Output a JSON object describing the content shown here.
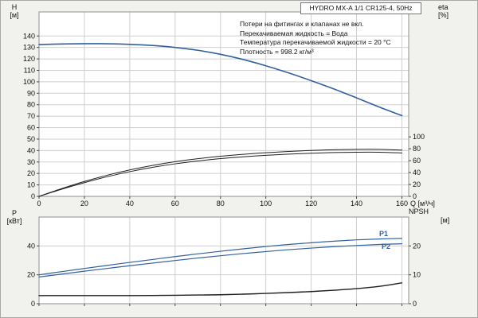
{
  "title": "HYDRO MX-A 1/1 CR125-4, 50Hz",
  "notes": [
    "Потери на фитингах и клапанах не вкл.",
    "Перекачиваемая жидкость = Вода",
    "Температура перекачиваемой жидкости = 20 °C",
    "Плотность = 998.2 кг/м³"
  ],
  "labels": {
    "h": "H",
    "h_unit": "[м]",
    "eta": "eta",
    "eta_unit": "[%]",
    "q": "Q [м³/ч]",
    "p": "P",
    "p_unit": "[кВт]",
    "npsh": "NPSH",
    "npsh_unit": "[м]",
    "p1": "P1",
    "p2": "P2"
  },
  "colors": {
    "blue": "#31609f",
    "dark": "#1f1f1f",
    "grid": "#cfcfcf",
    "frame": "#8f8f8f",
    "panel_bg": "#f1f1ee",
    "plot_bg": "#ffffff"
  },
  "chart_data": [
    {
      "type": "line",
      "title": "HYDRO MX-A 1/1 CR125-4, 50Hz",
      "xlabel": "Q [м³/ч]",
      "ylabel_left": "H [м]",
      "ylabel_right": "eta [%]",
      "xlim": [
        0,
        163
      ],
      "xticks": [
        0,
        20,
        40,
        60,
        80,
        100,
        120,
        140,
        160
      ],
      "ylim_left": [
        0,
        161
      ],
      "yticks_left": [
        0,
        10,
        20,
        30,
        40,
        50,
        60,
        70,
        80,
        90,
        100,
        110,
        120,
        130,
        140
      ],
      "ylim_right": [
        0,
        310
      ],
      "yticks_right": [
        0,
        20,
        40,
        60,
        80,
        100
      ],
      "grid": true,
      "legend_position": "none",
      "x": [
        0,
        10,
        20,
        30,
        40,
        50,
        60,
        70,
        80,
        90,
        100,
        110,
        120,
        130,
        140,
        150,
        160
      ],
      "series": [
        {
          "name": "H",
          "axis": "left",
          "color": "blue",
          "width": 1.6,
          "values": [
            132.5,
            133,
            133.3,
            133.2,
            132.7,
            131.7,
            130,
            127.5,
            124,
            119.5,
            114,
            107.8,
            101,
            93.8,
            86,
            78,
            70.5
          ]
        },
        {
          "name": "eta_pump",
          "axis": "right",
          "color": "dark",
          "width": 1,
          "values": [
            0,
            13,
            25,
            35.5,
            44.5,
            52,
            58.3,
            63.3,
            67.4,
            70.7,
            73.4,
            75.5,
            77.2,
            78.4,
            79,
            79,
            77.8
          ]
        },
        {
          "name": "eta_total",
          "axis": "right",
          "color": "dark",
          "width": 1,
          "values": [
            0,
            12,
            23,
            33,
            41.5,
            48.7,
            54.7,
            59.5,
            63.4,
            66.5,
            69,
            71,
            72.5,
            73.6,
            74.2,
            74.2,
            73
          ]
        }
      ]
    },
    {
      "type": "line",
      "title": "",
      "xlabel": "",
      "ylabel_left": "P [кВт]",
      "ylabel_right": "NPSH [м]",
      "xlim": [
        0,
        163
      ],
      "xticks": [
        0,
        20,
        40,
        60,
        80,
        100,
        120,
        140,
        160
      ],
      "ylim_left": [
        0,
        60
      ],
      "yticks_left": [
        0,
        20,
        40
      ],
      "ylim_right": [
        0,
        30
      ],
      "yticks_right": [
        0,
        10,
        20
      ],
      "grid": true,
      "legend_position": "inline-right",
      "x": [
        0,
        10,
        20,
        30,
        40,
        50,
        60,
        70,
        80,
        90,
        100,
        110,
        120,
        130,
        140,
        150,
        160
      ],
      "series": [
        {
          "name": "P1",
          "axis": "left",
          "color": "blue",
          "width": 1.2,
          "values": [
            20,
            22.2,
            24.4,
            26.5,
            28.6,
            30.6,
            32.6,
            34.5,
            36.3,
            38,
            39.6,
            41,
            42.2,
            43.3,
            44.2,
            44.8,
            45.2
          ]
        },
        {
          "name": "P2",
          "axis": "left",
          "color": "blue",
          "width": 1.2,
          "values": [
            18.5,
            20.5,
            22.5,
            24.4,
            26.3,
            28.1,
            29.9,
            31.6,
            33.2,
            34.7,
            36.1,
            37.4,
            38.5,
            39.5,
            40.3,
            41,
            41.5
          ]
        },
        {
          "name": "NPSH",
          "axis": "right",
          "color": "dark",
          "width": 1.4,
          "values": [
            2.8,
            2.8,
            2.8,
            2.8,
            2.8,
            2.85,
            2.9,
            3,
            3.1,
            3.3,
            3.55,
            3.85,
            4.2,
            4.65,
            5.2,
            6,
            7.2
          ]
        }
      ]
    }
  ]
}
